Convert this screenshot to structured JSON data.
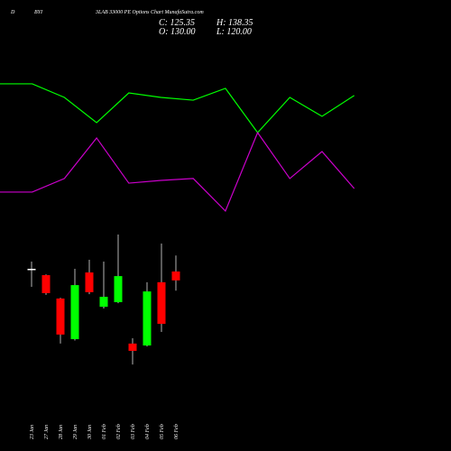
{
  "header": {
    "left": "D",
    "middle": "BYI",
    "title": "3LAB 33000 PE Options Chart MunafaSutra.com",
    "close": "C: 125.35",
    "high": "H: 138.35",
    "open": "O: 130.00",
    "low": "L: 120.00"
  },
  "chart_data": [
    {
      "type": "line",
      "ylim": [
        0,
        100
      ],
      "series": [
        {
          "color": "#00ff00",
          "values": [
            91.9,
            91.9,
            82.5,
            65,
            85.6,
            82.5,
            80.6,
            88.8,
            58.1,
            82.5,
            69.4,
            83.8
          ]
        },
        {
          "color": "#cc00cc",
          "values": [
            16.9,
            16.9,
            26.3,
            54.4,
            23.1,
            25,
            26.3,
            3.8,
            58.1,
            26.3,
            45,
            19.4
          ]
        }
      ]
    },
    {
      "type": "candlestick",
      "ylim": [
        74,
        154
      ],
      "up_color": "#00ff00",
      "down_color": "#ff0000",
      "categories": [
        "23 Jan",
        "27 Jan",
        "28 Jan",
        "29 Jan",
        "30 Jan",
        "01 Feb",
        "02 Feb",
        "03 Feb",
        "04 Feb",
        "05 Feb",
        "06 Feb"
      ],
      "open": [
        131.4,
        128.1,
        115.9,
        94.7,
        129.5,
        111.6,
        114.0,
        92.4,
        91.4,
        124.4,
        130.0
      ],
      "high": [
        135.2,
        128.5,
        116.3,
        131.4,
        136.1,
        135.2,
        149.3,
        95.2,
        124.4,
        144.6,
        138.35
      ],
      "low": [
        122.0,
        117.8,
        92.4,
        94.0,
        118.2,
        110.7,
        113.5,
        81.5,
        90.9,
        98.5,
        120.0
      ],
      "close": [
        131.4,
        118.7,
        97.1,
        122.9,
        119.2,
        116.8,
        127.6,
        88.6,
        119.6,
        102.7,
        125.35
      ]
    }
  ]
}
